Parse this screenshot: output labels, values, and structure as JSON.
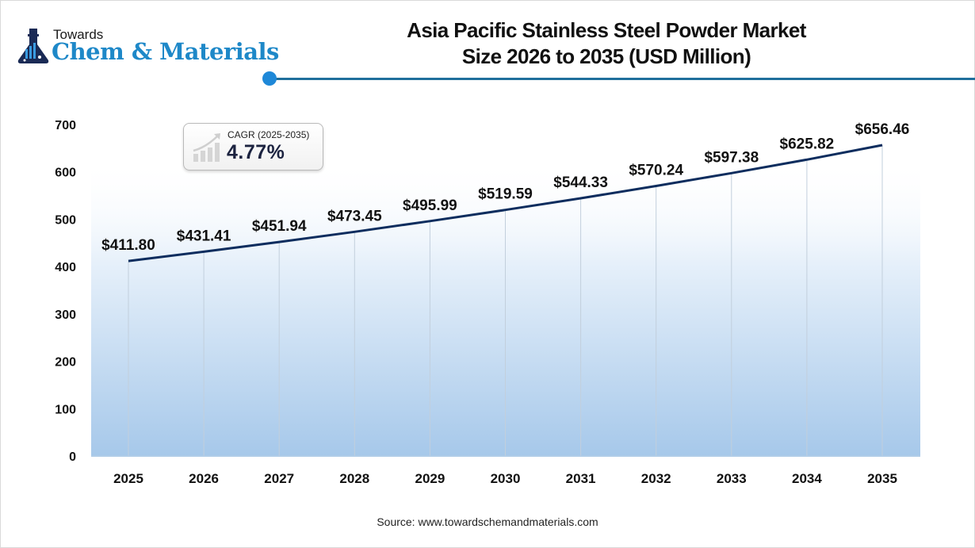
{
  "logo": {
    "top_text": "Towards",
    "main_text": "Chem & Materials",
    "icon": "flask-chart-icon"
  },
  "header": {
    "title_line1": "Asia Pacific Stainless Steel Powder Market",
    "title_line2": "Size 2026 to 2035 (USD Million)"
  },
  "cagr": {
    "label": "CAGR (2025-2035)",
    "value": "4.77%",
    "icon": "growth-chart-icon"
  },
  "source": "Source: www.towardschemandmaterials.com",
  "colors": {
    "line": "#0d2d5e",
    "area_top": "#ffffff",
    "area_bottom": "#a6c8ea",
    "accent": "#1e88d8",
    "title_rule": "#1f6f9c"
  },
  "chart_data": {
    "type": "line",
    "title": "Asia Pacific Stainless Steel Powder Market Size 2026 to 2035 (USD Million)",
    "xlabel": "",
    "ylabel": "",
    "categories": [
      "2025",
      "2026",
      "2027",
      "2028",
      "2029",
      "2030",
      "2031",
      "2032",
      "2033",
      "2034",
      "2035"
    ],
    "series": [
      {
        "name": "Market Size (USD Million)",
        "values": [
          411.8,
          431.41,
          451.94,
          473.45,
          495.99,
          519.59,
          544.33,
          570.24,
          597.38,
          625.82,
          656.46
        ]
      }
    ],
    "data_labels": [
      "$411.80",
      "$431.41",
      "$451.94",
      "$473.45",
      "$495.99",
      "$519.59",
      "$544.33",
      "$570.24",
      "$597.38",
      "$625.82",
      "$656.46"
    ],
    "ylim": [
      0,
      700
    ],
    "yticks": [
      0,
      100,
      200,
      300,
      400,
      500,
      600,
      700
    ],
    "grid": "vertical lines at each category",
    "legend": "none",
    "annotations": [
      "CAGR (2025-2035) 4.77%"
    ]
  }
}
